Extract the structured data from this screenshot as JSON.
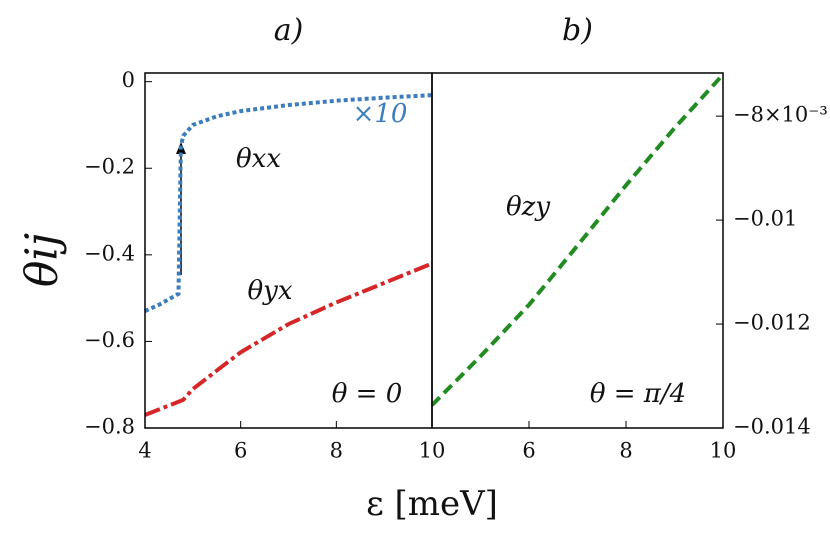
{
  "xlabel": "ε [meV]",
  "chart_data": [
    {
      "type": "line",
      "title": "a)",
      "ylabel": "θij",
      "xlim": [
        4,
        10
      ],
      "ylim": [
        -0.8,
        0.02
      ],
      "xticks": [
        4,
        6,
        8,
        10
      ],
      "yticks": [
        {
          "value": -0.8,
          "label": "−0.8"
        },
        {
          "value": -0.6,
          "label": "−0.6"
        },
        {
          "value": -0.4,
          "label": "−0.4"
        },
        {
          "value": -0.2,
          "label": "−0.2"
        },
        0
      ],
      "series": [
        {
          "color": "#3b7dbd",
          "dash": "dotted",
          "x": [
            4,
            4.3,
            4.7,
            4.75,
            4.8,
            5,
            5.5,
            6,
            7,
            8,
            9,
            10
          ],
          "values": [
            -0.53,
            -0.515,
            -0.49,
            -0.15,
            -0.125,
            -0.1,
            -0.08,
            -0.068,
            -0.054,
            -0.044,
            -0.037,
            -0.031
          ]
        },
        {
          "color": "#d62728",
          "dash": "dashdot",
          "x": [
            4,
            4.8,
            5,
            6,
            7,
            8,
            9,
            10
          ],
          "values": [
            -0.77,
            -0.735,
            -0.71,
            -0.625,
            -0.56,
            -0.51,
            -0.465,
            -0.42
          ]
        }
      ],
      "annotations": [
        "θxx",
        "×10",
        "θyx",
        "θ = 0"
      ]
    },
    {
      "type": "line",
      "title": "b)",
      "xlim": [
        4,
        10
      ],
      "ylim": [
        -0.014,
        -0.00717
      ],
      "y_axis_side": "right",
      "xticks": [
        6,
        8,
        10
      ],
      "yticks": [
        {
          "value": -0.014,
          "label": "−0.014"
        },
        {
          "value": -0.012,
          "label": "−0.012"
        },
        {
          "value": -0.01,
          "label": "−0.01"
        },
        {
          "value": -0.008,
          "label": "−8×10⁻³"
        }
      ],
      "series": [
        {
          "color": "#228b22",
          "dash": "dashed",
          "x": [
            4,
            5,
            6,
            7,
            8,
            9,
            10
          ],
          "values": [
            -0.01356,
            -0.01262,
            -0.01163,
            -0.01049,
            -0.00933,
            -0.00823,
            -0.0072
          ]
        }
      ],
      "annotations": [
        "θzy",
        "θ = π/4"
      ]
    }
  ]
}
